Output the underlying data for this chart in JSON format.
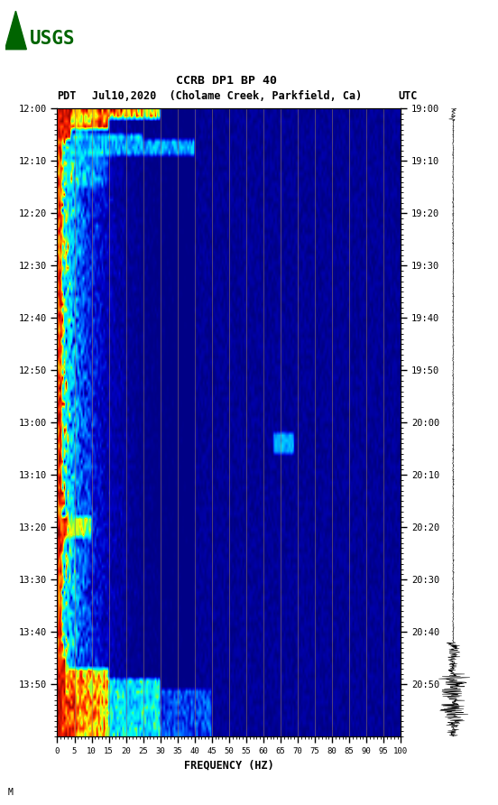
{
  "title_line1": "CCRB DP1 BP 40",
  "title_line2_left": "PDT",
  "title_line2_mid": "Jul10,2020  (Cholame Creek, Parkfield, Ca)",
  "title_line2_right": "UTC",
  "freq_min": 0,
  "freq_max": 100,
  "freq_ticks": [
    0,
    5,
    10,
    15,
    20,
    25,
    30,
    35,
    40,
    45,
    50,
    55,
    60,
    65,
    70,
    75,
    80,
    85,
    90,
    95,
    100
  ],
  "freq_gridlines": [
    5,
    10,
    15,
    20,
    25,
    30,
    35,
    40,
    45,
    50,
    55,
    60,
    65,
    70,
    75,
    80,
    85,
    90,
    95,
    100
  ],
  "time_labels_left": [
    "12:00",
    "12:10",
    "12:20",
    "12:30",
    "12:40",
    "12:50",
    "13:00",
    "13:10",
    "13:20",
    "13:30",
    "13:40",
    "13:50"
  ],
  "time_labels_right": [
    "19:00",
    "19:10",
    "19:20",
    "19:30",
    "19:40",
    "19:50",
    "20:00",
    "20:10",
    "20:20",
    "20:30",
    "20:40",
    "20:50"
  ],
  "n_time_steps": 120,
  "n_freq_bins": 200,
  "xlabel": "FREQUENCY (HZ)",
  "cmap_nodes": [
    [
      0.0,
      "#000070"
    ],
    [
      0.12,
      "#0000cd"
    ],
    [
      0.25,
      "#0060ff"
    ],
    [
      0.4,
      "#00cfff"
    ],
    [
      0.52,
      "#00ffee"
    ],
    [
      0.62,
      "#80ff40"
    ],
    [
      0.72,
      "#ffff00"
    ],
    [
      0.82,
      "#ff8000"
    ],
    [
      0.9,
      "#ff2000"
    ],
    [
      1.0,
      "#800000"
    ]
  ]
}
